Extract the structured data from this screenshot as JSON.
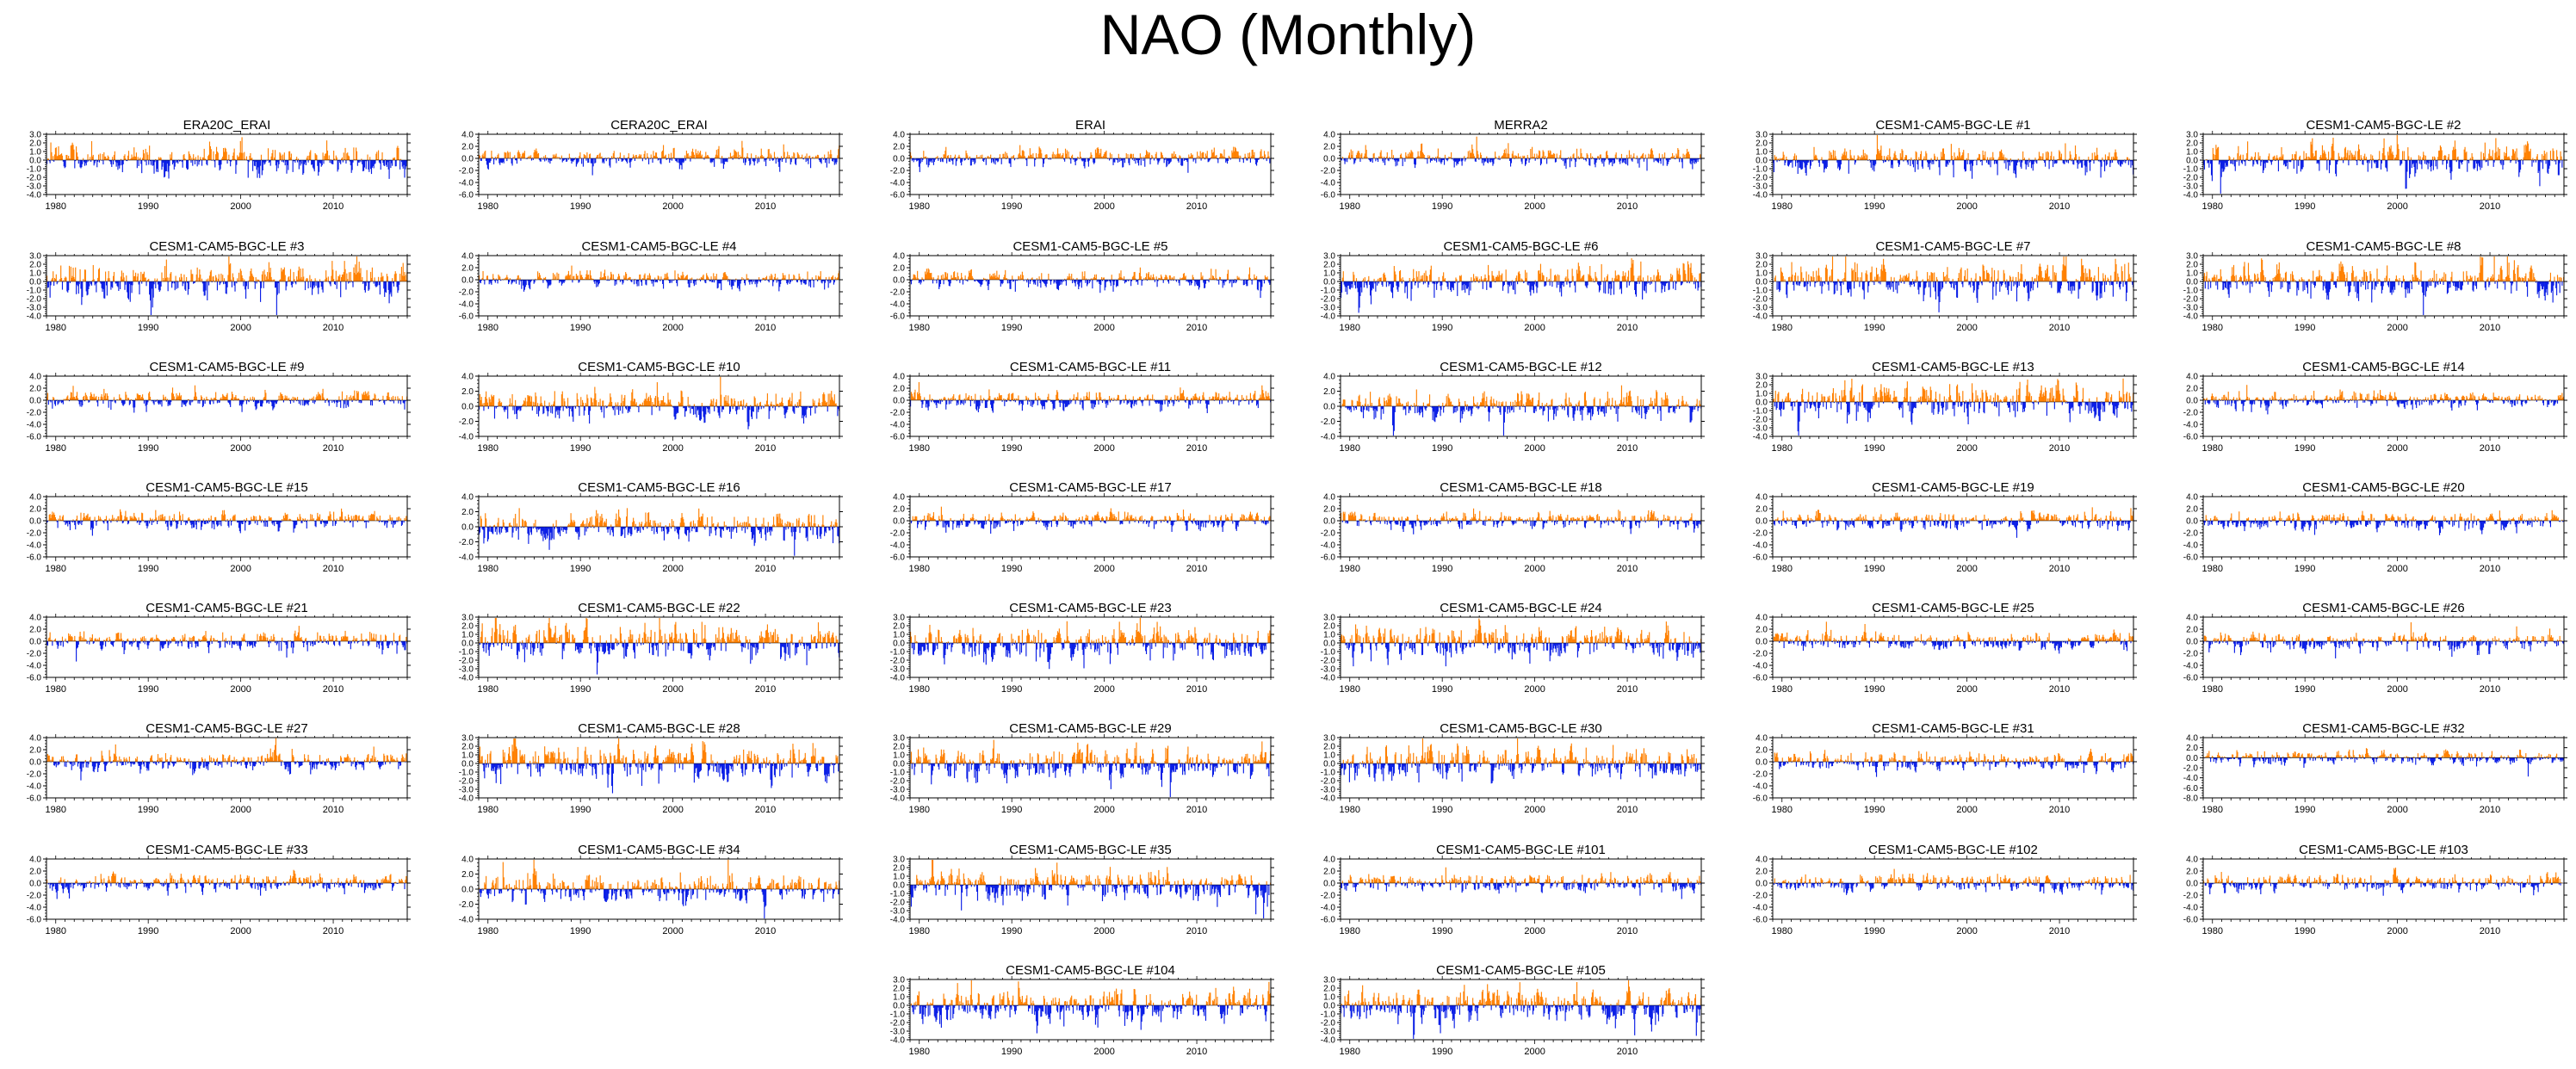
{
  "page": {
    "title": "NAO (Monthly)"
  },
  "colors": {
    "positive": "#ff8000",
    "negative": "#0a1ee6",
    "axis": "#000000"
  },
  "x_ticks": [
    "1980",
    "1990",
    "2000",
    "2010"
  ],
  "chart_data": [
    {
      "type": "bar",
      "title": "ERA20C_ERAI",
      "xlim": [
        1979,
        2018
      ],
      "ylim": [
        -4.0,
        3.0
      ],
      "yticks": [
        "3.0",
        "2.0",
        "1.0",
        "0.0",
        "-1.0",
        "-2.0",
        "-3.0",
        "-4.0"
      ],
      "amp": 1.2,
      "seed": 1
    },
    {
      "type": "bar",
      "title": "CERA20C_ERAI",
      "xlim": [
        1979,
        2018
      ],
      "ylim": [
        -6.0,
        4.0
      ],
      "yticks": [
        "4.0",
        "2.0",
        "0.0",
        "-2.0",
        "-4.0",
        "-6.0"
      ],
      "amp": 1.0,
      "seed": 2
    },
    {
      "type": "bar",
      "title": "ERAI",
      "xlim": [
        1979,
        2018
      ],
      "ylim": [
        -6.0,
        4.0
      ],
      "yticks": [
        "4.0",
        "2.0",
        "0.0",
        "-2.0",
        "-4.0",
        "-6.0"
      ],
      "amp": 1.0,
      "seed": 3
    },
    {
      "type": "bar",
      "title": "MERRA2",
      "xlim": [
        1979,
        2018
      ],
      "ylim": [
        -6.0,
        4.0
      ],
      "yticks": [
        "4.0",
        "2.0",
        "0.0",
        "-2.0",
        "-4.0",
        "-6.0"
      ],
      "amp": 1.0,
      "seed": 4
    },
    {
      "type": "bar",
      "title": "CESM1-CAM5-BGC-LE #1",
      "xlim": [
        1979,
        2018
      ],
      "ylim": [
        -4.0,
        3.0
      ],
      "yticks": [
        "3.0",
        "2.0",
        "1.0",
        "0.0",
        "-1.0",
        "-2.0",
        "-3.0",
        "-4.0"
      ],
      "amp": 1.0,
      "seed": 5
    },
    {
      "type": "bar",
      "title": "CESM1-CAM5-BGC-LE #2",
      "xlim": [
        1979,
        2018
      ],
      "ylim": [
        -4.0,
        3.0
      ],
      "yticks": [
        "3.0",
        "2.0",
        "1.0",
        "0.0",
        "-1.0",
        "-2.0",
        "-3.0",
        "-4.0"
      ],
      "amp": 1.2,
      "seed": 6
    },
    {
      "type": "bar",
      "title": "CESM1-CAM5-BGC-LE #3",
      "xlim": [
        1979,
        2018
      ],
      "ylim": [
        -4.0,
        3.0
      ],
      "yticks": [
        "3.0",
        "2.0",
        "1.0",
        "0.0",
        "-1.0",
        "-2.0",
        "-3.0",
        "-4.0"
      ],
      "amp": 1.3,
      "seed": 7
    },
    {
      "type": "bar",
      "title": "CESM1-CAM5-BGC-LE #4",
      "xlim": [
        1979,
        2018
      ],
      "ylim": [
        -6.0,
        4.0
      ],
      "yticks": [
        "4.0",
        "2.0",
        "0.0",
        "-2.0",
        "-4.0",
        "-6.0"
      ],
      "amp": 1.0,
      "seed": 8
    },
    {
      "type": "bar",
      "title": "CESM1-CAM5-BGC-LE #5",
      "xlim": [
        1979,
        2018
      ],
      "ylim": [
        -6.0,
        4.0
      ],
      "yticks": [
        "4.0",
        "2.0",
        "0.0",
        "-2.0",
        "-4.0",
        "-6.0"
      ],
      "amp": 1.0,
      "seed": 9
    },
    {
      "type": "bar",
      "title": "CESM1-CAM5-BGC-LE #6",
      "xlim": [
        1979,
        2018
      ],
      "ylim": [
        -4.0,
        3.0
      ],
      "yticks": [
        "3.0",
        "2.0",
        "1.0",
        "0.0",
        "-1.0",
        "-2.0",
        "-3.0",
        "-4.0"
      ],
      "amp": 1.3,
      "seed": 10
    },
    {
      "type": "bar",
      "title": "CESM1-CAM5-BGC-LE #7",
      "xlim": [
        1979,
        2018
      ],
      "ylim": [
        -4.0,
        3.0
      ],
      "yticks": [
        "3.0",
        "2.0",
        "1.0",
        "0.0",
        "-1.0",
        "-2.0",
        "-3.0",
        "-4.0"
      ],
      "amp": 1.4,
      "seed": 11
    },
    {
      "type": "bar",
      "title": "CESM1-CAM5-BGC-LE #8",
      "xlim": [
        1979,
        2018
      ],
      "ylim": [
        -4.0,
        3.0
      ],
      "yticks": [
        "3.0",
        "2.0",
        "1.0",
        "0.0",
        "-1.0",
        "-2.0",
        "-3.0",
        "-4.0"
      ],
      "amp": 1.4,
      "seed": 12
    },
    {
      "type": "bar",
      "title": "CESM1-CAM5-BGC-LE #9",
      "xlim": [
        1979,
        2018
      ],
      "ylim": [
        -6.0,
        4.0
      ],
      "yticks": [
        "4.0",
        "2.0",
        "0.0",
        "-2.0",
        "-4.0",
        "-6.0"
      ],
      "amp": 1.0,
      "seed": 13
    },
    {
      "type": "bar",
      "title": "CESM1-CAM5-BGC-LE #10",
      "xlim": [
        1979,
        2018
      ],
      "ylim": [
        -4.0,
        4.0
      ],
      "yticks": [
        "4.0",
        "2.0",
        "0.0",
        "-2.0",
        "-4.0"
      ],
      "amp": 1.3,
      "seed": 14
    },
    {
      "type": "bar",
      "title": "CESM1-CAM5-BGC-LE #11",
      "xlim": [
        1979,
        2018
      ],
      "ylim": [
        -6.0,
        4.0
      ],
      "yticks": [
        "4.0",
        "2.0",
        "0.0",
        "-2.0",
        "-4.0",
        "-6.0"
      ],
      "amp": 1.0,
      "seed": 15
    },
    {
      "type": "bar",
      "title": "CESM1-CAM5-BGC-LE #12",
      "xlim": [
        1979,
        2018
      ],
      "ylim": [
        -4.0,
        4.0
      ],
      "yticks": [
        "4.0",
        "2.0",
        "0.0",
        "-2.0",
        "-4.0"
      ],
      "amp": 1.2,
      "seed": 16
    },
    {
      "type": "bar",
      "title": "CESM1-CAM5-BGC-LE #13",
      "xlim": [
        1979,
        2018
      ],
      "ylim": [
        -4.0,
        3.0
      ],
      "yticks": [
        "3.0",
        "2.0",
        "1.0",
        "0.0",
        "-1.0",
        "-2.0",
        "-3.0",
        "-4.0"
      ],
      "amp": 1.3,
      "seed": 17
    },
    {
      "type": "bar",
      "title": "CESM1-CAM5-BGC-LE #14",
      "xlim": [
        1979,
        2018
      ],
      "ylim": [
        -6.0,
        4.0
      ],
      "yticks": [
        "4.0",
        "2.0",
        "0.0",
        "-2.0",
        "-4.0",
        "-6.0"
      ],
      "amp": 1.0,
      "seed": 18
    },
    {
      "type": "bar",
      "title": "CESM1-CAM5-BGC-LE #15",
      "xlim": [
        1979,
        2018
      ],
      "ylim": [
        -6.0,
        4.0
      ],
      "yticks": [
        "4.0",
        "2.0",
        "0.0",
        "-2.0",
        "-4.0",
        "-6.0"
      ],
      "amp": 1.0,
      "seed": 19
    },
    {
      "type": "bar",
      "title": "CESM1-CAM5-BGC-LE #16",
      "xlim": [
        1979,
        2018
      ],
      "ylim": [
        -4.0,
        4.0
      ],
      "yticks": [
        "4.0",
        "2.0",
        "0.0",
        "-2.0",
        "-4.0"
      ],
      "amp": 1.3,
      "seed": 20
    },
    {
      "type": "bar",
      "title": "CESM1-CAM5-BGC-LE #17",
      "xlim": [
        1979,
        2018
      ],
      "ylim": [
        -6.0,
        4.0
      ],
      "yticks": [
        "4.0",
        "2.0",
        "0.0",
        "-2.0",
        "-4.0",
        "-6.0"
      ],
      "amp": 1.0,
      "seed": 21
    },
    {
      "type": "bar",
      "title": "CESM1-CAM5-BGC-LE #18",
      "xlim": [
        1979,
        2018
      ],
      "ylim": [
        -6.0,
        4.0
      ],
      "yticks": [
        "4.0",
        "2.0",
        "0.0",
        "-2.0",
        "-4.0",
        "-6.0"
      ],
      "amp": 1.0,
      "seed": 22
    },
    {
      "type": "bar",
      "title": "CESM1-CAM5-BGC-LE #19",
      "xlim": [
        1979,
        2018
      ],
      "ylim": [
        -6.0,
        4.0
      ],
      "yticks": [
        "4.0",
        "2.0",
        "0.0",
        "-2.0",
        "-4.0",
        "-6.0"
      ],
      "amp": 1.0,
      "seed": 23
    },
    {
      "type": "bar",
      "title": "CESM1-CAM5-BGC-LE #20",
      "xlim": [
        1979,
        2018
      ],
      "ylim": [
        -6.0,
        4.0
      ],
      "yticks": [
        "4.0",
        "2.0",
        "0.0",
        "-2.0",
        "-4.0",
        "-6.0"
      ],
      "amp": 1.0,
      "seed": 24
    },
    {
      "type": "bar",
      "title": "CESM1-CAM5-BGC-LE #21",
      "xlim": [
        1979,
        2018
      ],
      "ylim": [
        -6.0,
        4.0
      ],
      "yticks": [
        "4.0",
        "2.0",
        "0.0",
        "-2.0",
        "-4.0",
        "-6.0"
      ],
      "amp": 1.0,
      "seed": 25
    },
    {
      "type": "bar",
      "title": "CESM1-CAM5-BGC-LE #22",
      "xlim": [
        1979,
        2018
      ],
      "ylim": [
        -4.0,
        3.0
      ],
      "yticks": [
        "3.0",
        "2.0",
        "1.0",
        "0.0",
        "-1.0",
        "-2.0",
        "-3.0",
        "-4.0"
      ],
      "amp": 1.3,
      "seed": 26
    },
    {
      "type": "bar",
      "title": "CESM1-CAM5-BGC-LE #23",
      "xlim": [
        1979,
        2018
      ],
      "ylim": [
        -4.0,
        3.0
      ],
      "yticks": [
        "3.0",
        "2.0",
        "1.0",
        "0.0",
        "-1.0",
        "-2.0",
        "-3.0",
        "-4.0"
      ],
      "amp": 1.3,
      "seed": 27
    },
    {
      "type": "bar",
      "title": "CESM1-CAM5-BGC-LE #24",
      "xlim": [
        1979,
        2018
      ],
      "ylim": [
        -4.0,
        3.0
      ],
      "yticks": [
        "3.0",
        "2.0",
        "1.0",
        "0.0",
        "-1.0",
        "-2.0",
        "-3.0",
        "-4.0"
      ],
      "amp": 1.3,
      "seed": 28
    },
    {
      "type": "bar",
      "title": "CESM1-CAM5-BGC-LE #25",
      "xlim": [
        1979,
        2018
      ],
      "ylim": [
        -6.0,
        4.0
      ],
      "yticks": [
        "4.0",
        "2.0",
        "0.0",
        "-2.0",
        "-4.0",
        "-6.0"
      ],
      "amp": 1.0,
      "seed": 29
    },
    {
      "type": "bar",
      "title": "CESM1-CAM5-BGC-LE #26",
      "xlim": [
        1979,
        2018
      ],
      "ylim": [
        -6.0,
        4.0
      ],
      "yticks": [
        "4.0",
        "2.0",
        "0.0",
        "-2.0",
        "-4.0",
        "-6.0"
      ],
      "amp": 1.0,
      "seed": 30
    },
    {
      "type": "bar",
      "title": "CESM1-CAM5-BGC-LE #27",
      "xlim": [
        1979,
        2018
      ],
      "ylim": [
        -6.0,
        4.0
      ],
      "yticks": [
        "4.0",
        "2.0",
        "0.0",
        "-2.0",
        "-4.0",
        "-6.0"
      ],
      "amp": 1.0,
      "seed": 31
    },
    {
      "type": "bar",
      "title": "CESM1-CAM5-BGC-LE #28",
      "xlim": [
        1979,
        2018
      ],
      "ylim": [
        -4.0,
        3.0
      ],
      "yticks": [
        "3.0",
        "2.0",
        "1.0",
        "0.0",
        "-1.0",
        "-2.0",
        "-3.0",
        "-4.0"
      ],
      "amp": 1.3,
      "seed": 32
    },
    {
      "type": "bar",
      "title": "CESM1-CAM5-BGC-LE #29",
      "xlim": [
        1979,
        2018
      ],
      "ylim": [
        -4.0,
        3.0
      ],
      "yticks": [
        "3.0",
        "2.0",
        "1.0",
        "0.0",
        "-1.0",
        "-2.0",
        "-3.0",
        "-4.0"
      ],
      "amp": 1.3,
      "seed": 33
    },
    {
      "type": "bar",
      "title": "CESM1-CAM5-BGC-LE #30",
      "xlim": [
        1979,
        2018
      ],
      "ylim": [
        -4.0,
        3.0
      ],
      "yticks": [
        "3.0",
        "2.0",
        "1.0",
        "0.0",
        "-1.0",
        "-2.0",
        "-3.0",
        "-4.0"
      ],
      "amp": 1.3,
      "seed": 34
    },
    {
      "type": "bar",
      "title": "CESM1-CAM5-BGC-LE #31",
      "xlim": [
        1979,
        2018
      ],
      "ylim": [
        -6.0,
        4.0
      ],
      "yticks": [
        "4.0",
        "2.0",
        "0.0",
        "-2.0",
        "-4.0",
        "-6.0"
      ],
      "amp": 1.0,
      "seed": 35
    },
    {
      "type": "bar",
      "title": "CESM1-CAM5-BGC-LE #32",
      "xlim": [
        1979,
        2018
      ],
      "ylim": [
        -8.0,
        4.0
      ],
      "yticks": [
        "4.0",
        "2.0",
        "0.0",
        "-2.0",
        "-4.0",
        "-6.0",
        "-8.0"
      ],
      "amp": 1.0,
      "seed": 36
    },
    {
      "type": "bar",
      "title": "CESM1-CAM5-BGC-LE #33",
      "xlim": [
        1979,
        2018
      ],
      "ylim": [
        -6.0,
        4.0
      ],
      "yticks": [
        "4.0",
        "2.0",
        "0.0",
        "-2.0",
        "-4.0",
        "-6.0"
      ],
      "amp": 1.0,
      "seed": 37
    },
    {
      "type": "bar",
      "title": "CESM1-CAM5-BGC-LE #34",
      "xlim": [
        1979,
        2018
      ],
      "ylim": [
        -4.0,
        4.0
      ],
      "yticks": [
        "4.0",
        "2.0",
        "0.0",
        "-2.0",
        "-4.0"
      ],
      "amp": 1.3,
      "seed": 38
    },
    {
      "type": "bar",
      "title": "CESM1-CAM5-BGC-LE #35",
      "xlim": [
        1979,
        2018
      ],
      "ylim": [
        -4.0,
        3.0
      ],
      "yticks": [
        "3.0",
        "2.0",
        "1.0",
        "0.0",
        "-1.0",
        "-2.0",
        "-3.0",
        "-4.0"
      ],
      "amp": 1.3,
      "seed": 39
    },
    {
      "type": "bar",
      "title": "CESM1-CAM5-BGC-LE #101",
      "xlim": [
        1979,
        2018
      ],
      "ylim": [
        -6.0,
        4.0
      ],
      "yticks": [
        "4.0",
        "2.0",
        "0.0",
        "-2.0",
        "-4.0",
        "-6.0"
      ],
      "amp": 1.0,
      "seed": 40
    },
    {
      "type": "bar",
      "title": "CESM1-CAM5-BGC-LE #102",
      "xlim": [
        1979,
        2018
      ],
      "ylim": [
        -6.0,
        4.0
      ],
      "yticks": [
        "4.0",
        "2.0",
        "0.0",
        "-2.0",
        "-4.0",
        "-6.0"
      ],
      "amp": 1.0,
      "seed": 41
    },
    {
      "type": "bar",
      "title": "CESM1-CAM5-BGC-LE #103",
      "xlim": [
        1979,
        2018
      ],
      "ylim": [
        -6.0,
        4.0
      ],
      "yticks": [
        "4.0",
        "2.0",
        "0.0",
        "-2.0",
        "-4.0",
        "-6.0"
      ],
      "amp": 1.0,
      "seed": 42
    },
    {
      "type": "bar",
      "title": "CESM1-CAM5-BGC-LE #104",
      "xlim": [
        1979,
        2018
      ],
      "ylim": [
        -4.0,
        3.0
      ],
      "yticks": [
        "3.0",
        "2.0",
        "1.0",
        "0.0",
        "-1.0",
        "-2.0",
        "-3.0",
        "-4.0"
      ],
      "amp": 1.3,
      "seed": 43
    },
    {
      "type": "bar",
      "title": "CESM1-CAM5-BGC-LE #105",
      "xlim": [
        1979,
        2018
      ],
      "ylim": [
        -4.0,
        3.0
      ],
      "yticks": [
        "3.0",
        "2.0",
        "1.0",
        "0.0",
        "-1.0",
        "-2.0",
        "-3.0",
        "-4.0"
      ],
      "amp": 1.3,
      "seed": 44
    }
  ]
}
